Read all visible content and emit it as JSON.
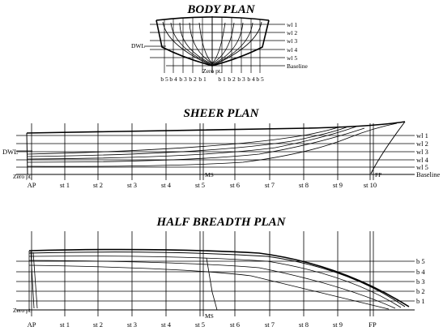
{
  "body_plan": {
    "title": "BODY PLAN",
    "waterlines": [
      "wl 1",
      "wl 2",
      "wl 3",
      "wl 4",
      "wl 5",
      "Baseline"
    ],
    "dwl_label": "DWL",
    "zero_label": "Zero pt.",
    "buttocks": [
      "b 5",
      "b 4",
      "b 3",
      "b 2",
      "b 1",
      "b 1",
      "b 2",
      "b 3",
      "b 4",
      "b 5"
    ]
  },
  "sheer_plan": {
    "title": "SHEER PLAN",
    "waterlines": [
      "wl 1",
      "wl 2",
      "wl 3",
      "wl 4",
      "wl 5",
      "Baseline"
    ],
    "dwl_label": "DWL",
    "zero_label": "Zero pt.",
    "ms_label": "MS",
    "fp_label": "FP",
    "stations": [
      "AP",
      "st 1",
      "st 2",
      "st 3",
      "st 4",
      "st 5",
      "st 6",
      "st 7",
      "st 8",
      "st 9",
      "st 10"
    ]
  },
  "half_breadth_plan": {
    "title": "HALF BREADTH PLAN",
    "buttocks": [
      "b 5",
      "b 4",
      "b 3",
      "b 2",
      "b 1"
    ],
    "zero_label": "Zero pt.",
    "ms_label": "MS",
    "stations": [
      "AP",
      "st 1",
      "st 2",
      "st 3",
      "st 4",
      "st 5",
      "st 6",
      "st 7",
      "st 8",
      "st 9",
      "FP"
    ]
  }
}
